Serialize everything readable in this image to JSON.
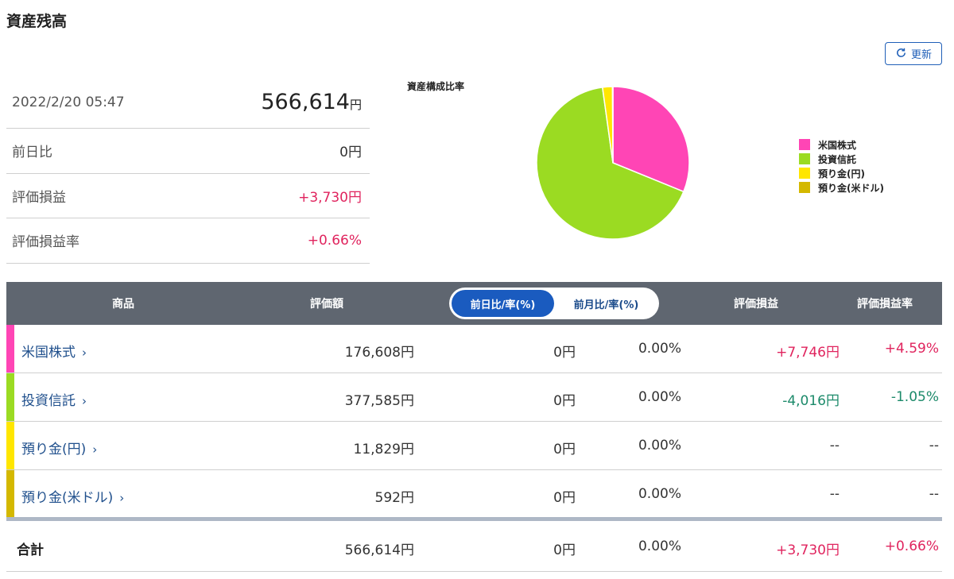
{
  "page": {
    "title": "資産残高"
  },
  "refresh": {
    "label": "更新",
    "icon": "refresh-icon"
  },
  "summary": {
    "datetime": "2022/2/20 05:47",
    "total": "566,614",
    "total_unit": "円",
    "rows": [
      {
        "label": "前日比",
        "value": "0円",
        "tone": "neutral"
      },
      {
        "label": "評価損益",
        "value": "+3,730円",
        "tone": "positive"
      },
      {
        "label": "評価損益率",
        "value": "+0.66%",
        "tone": "positive"
      }
    ]
  },
  "chart_data": {
    "type": "pie",
    "title": "資産構成比率",
    "legend_position": "right",
    "categories": [
      "米国株式",
      "投資信託",
      "預り金(円)",
      "預り金(米ドル)"
    ],
    "values": [
      176608,
      377585,
      11829,
      592
    ],
    "colors": [
      "#ff45b5",
      "#9bdb22",
      "#ffe600",
      "#d4b800"
    ]
  },
  "table": {
    "headers": {
      "product": "商品",
      "valuation": "評価額",
      "toggle_active": "前日比/率(%)",
      "toggle_inactive": "前月比/率(%)",
      "pl": "評価損益",
      "pl_rate": "評価損益率"
    },
    "rows": [
      {
        "name": "米国株式",
        "value": "176,608円",
        "change": "0円",
        "change_rate": "0.00%",
        "pl": "+7,746円",
        "pl_rate": "+4.59%",
        "tone": "positive",
        "color": "#ff45b5"
      },
      {
        "name": "投資信託",
        "value": "377,585円",
        "change": "0円",
        "change_rate": "0.00%",
        "pl": "-4,016円",
        "pl_rate": "-1.05%",
        "tone": "negative",
        "color": "#9bdb22"
      },
      {
        "name": "預り金(円)",
        "value": "11,829円",
        "change": "0円",
        "change_rate": "0.00%",
        "pl": "--",
        "pl_rate": "--",
        "tone": "neutral",
        "color": "#ffe600"
      },
      {
        "name": "預り金(米ドル)",
        "value": "592円",
        "change": "0円",
        "change_rate": "0.00%",
        "pl": "--",
        "pl_rate": "--",
        "tone": "neutral",
        "color": "#d4b800"
      }
    ],
    "total": {
      "label": "合計",
      "value": "566,614円",
      "change": "0円",
      "change_rate": "0.00%",
      "pl": "+3,730円",
      "pl_rate": "+0.66%"
    }
  }
}
